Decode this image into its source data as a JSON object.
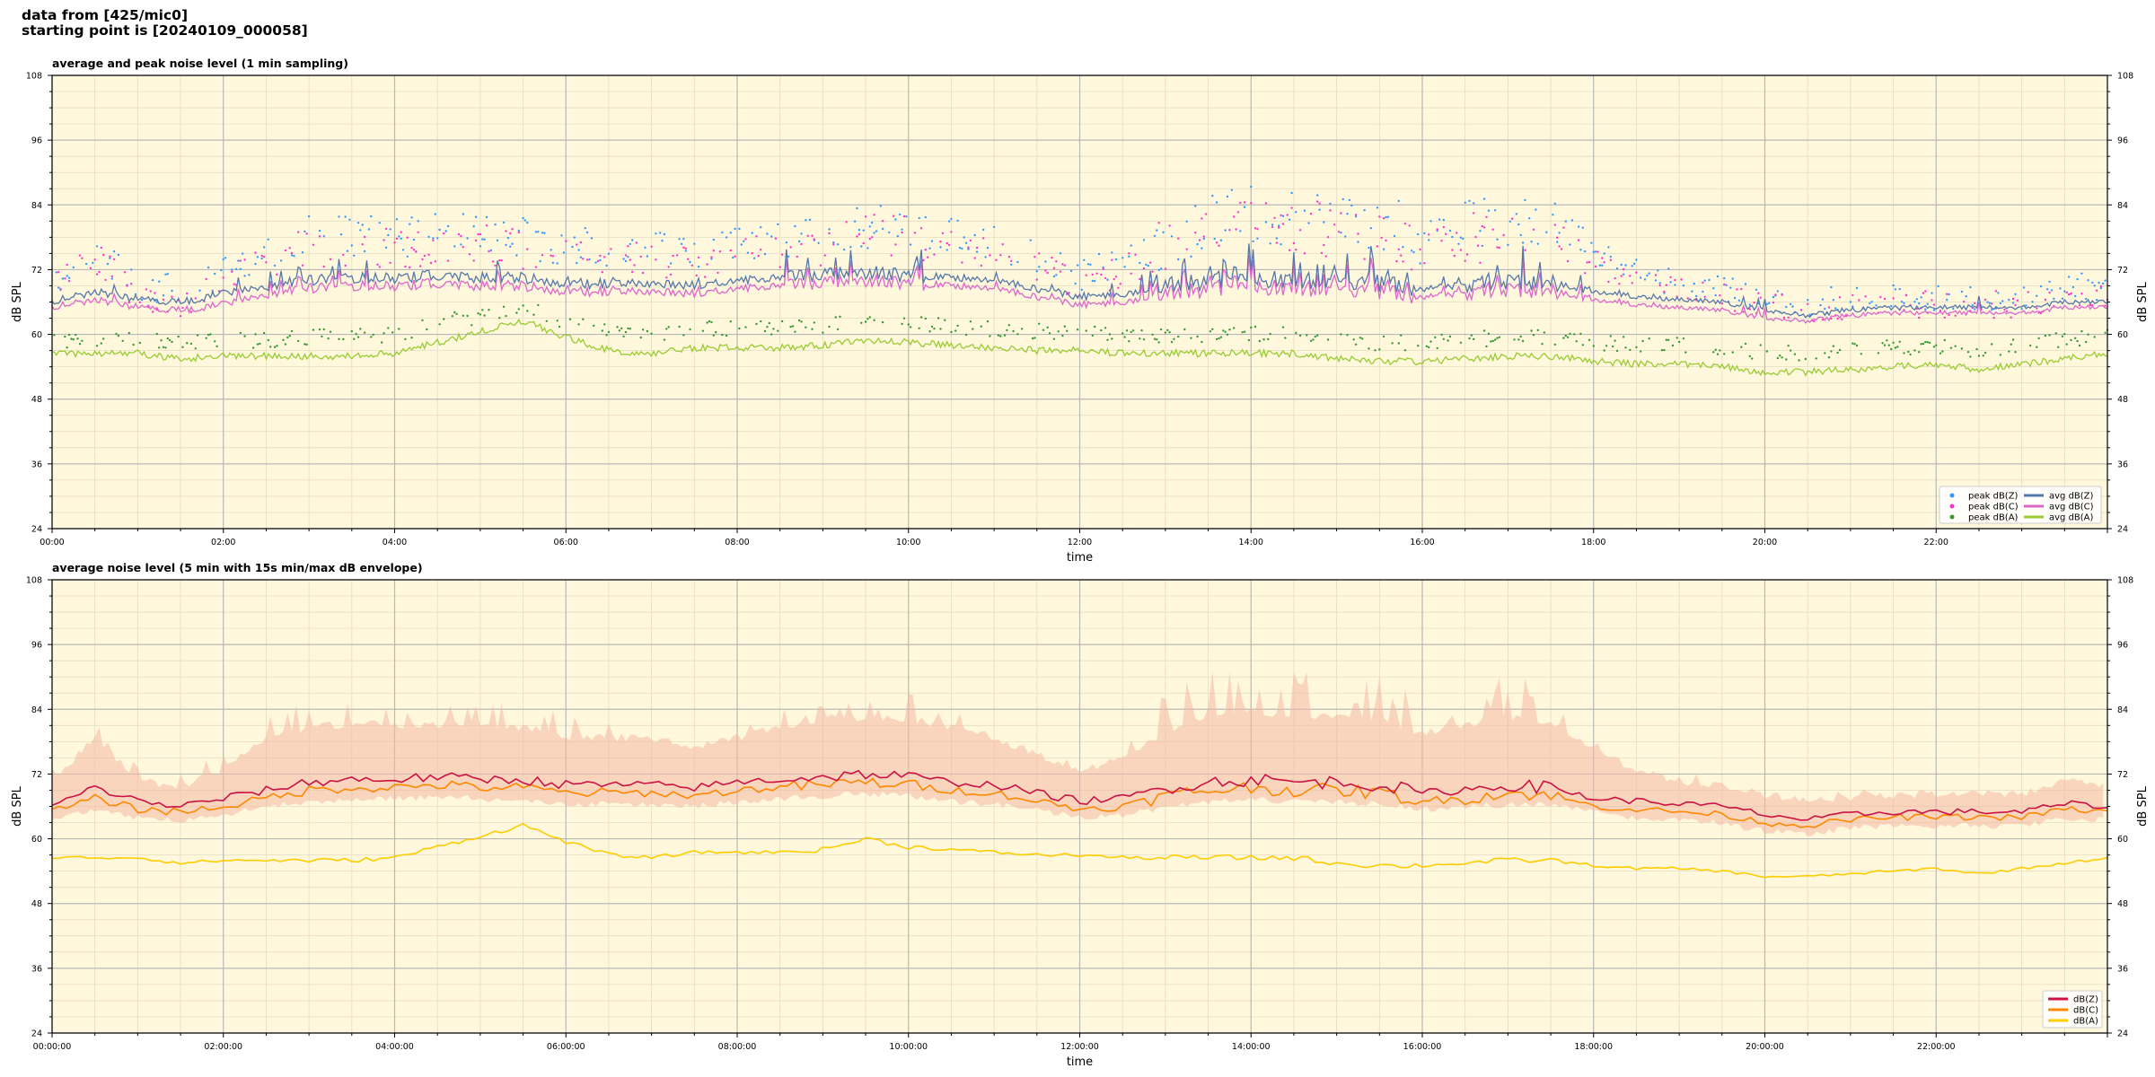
{
  "figure": {
    "title_line1": "data from [425/mic0]",
    "title_line2": "starting point is [20240109_000058]"
  },
  "colors": {
    "plot_background": "#fff8dc",
    "peak_z": "#3399ff",
    "peak_c": "#ff33cc",
    "peak_a": "#339933",
    "avg_z": "#5577aa",
    "avg_c": "#dd66cc",
    "avg_a": "#99cc33",
    "env_fill": "#f4b8a4",
    "db_z": "#cc1144",
    "db_c": "#ff8800",
    "db_a": "#ffcc00"
  },
  "chart_data": [
    {
      "type": "scatter",
      "title": "average and peak noise level (1 min sampling)",
      "xlabel": "time",
      "ylabel": "dB SPL",
      "ylabel_right": "dB SPL",
      "xlim_hours": [
        0,
        24
      ],
      "ylim": [
        24,
        108
      ],
      "xticks": [
        "00:00",
        "02:00",
        "04:00",
        "06:00",
        "08:00",
        "10:00",
        "12:00",
        "14:00",
        "16:00",
        "18:00",
        "20:00",
        "22:00"
      ],
      "yticks": [
        24,
        36,
        48,
        60,
        72,
        84,
        96,
        108
      ],
      "grid": true,
      "legend_position": "lower-right",
      "legend": [
        {
          "label": "peak dB(Z)",
          "kind": "dot",
          "color": "#3399ff"
        },
        {
          "label": "peak dB(C)",
          "kind": "dot",
          "color": "#ff33cc"
        },
        {
          "label": "peak dB(A)",
          "kind": "dot",
          "color": "#339933"
        },
        {
          "label": "avg dB(Z)",
          "kind": "line",
          "color": "#5577aa"
        },
        {
          "label": "avg dB(C)",
          "kind": "line",
          "color": "#dd66cc"
        },
        {
          "label": "avg dB(A)",
          "kind": "line",
          "color": "#99cc33"
        }
      ],
      "baselines_hours": [
        0,
        0.5,
        1,
        1.5,
        2,
        2.5,
        3,
        3.5,
        4,
        4.5,
        5,
        5.5,
        6,
        6.5,
        7,
        7.5,
        8,
        8.5,
        9,
        9.5,
        10,
        10.5,
        11,
        11.5,
        12,
        12.5,
        13,
        13.5,
        14,
        14.5,
        15,
        15.5,
        16,
        16.5,
        17,
        17.5,
        18,
        18.5,
        19,
        19.5,
        20,
        20.5,
        21,
        21.5,
        22,
        22.5,
        23,
        23.5,
        24
      ],
      "series": [
        {
          "name": "avg dB(Z)",
          "values": [
            66,
            68,
            66.5,
            66,
            67.5,
            69,
            70,
            70.5,
            70.5,
            71,
            70.5,
            70.5,
            69.5,
            69.5,
            69.5,
            69,
            70,
            70.5,
            71,
            71.5,
            71,
            70.5,
            70,
            68.5,
            67,
            67.5,
            69,
            70,
            70.5,
            70,
            70,
            69.5,
            68.5,
            69,
            69.5,
            69.5,
            68,
            67,
            66.5,
            66,
            64.5,
            63.5,
            64.5,
            65,
            65,
            65,
            65,
            66,
            66
          ]
        },
        {
          "name": "avg dB(C)",
          "values": [
            65,
            66.5,
            65,
            64.5,
            65.5,
            67.5,
            68.5,
            69,
            69,
            69.5,
            69,
            69,
            68,
            68,
            68,
            67.5,
            68.5,
            69,
            69.5,
            70,
            69.5,
            69,
            68.5,
            67,
            65.5,
            66,
            67.5,
            68.5,
            69,
            68.5,
            68.5,
            68,
            67,
            67.5,
            68,
            68,
            66.5,
            65.5,
            65,
            64.5,
            63,
            62.5,
            63.5,
            64,
            64,
            64,
            64,
            65,
            65
          ]
        },
        {
          "name": "avg dB(A)",
          "values": [
            56.5,
            56.5,
            56.5,
            55.5,
            56,
            56,
            56,
            56,
            56.5,
            58.5,
            60.5,
            62.5,
            59.5,
            57,
            56.5,
            57.5,
            57.5,
            57.5,
            58,
            59,
            58.5,
            58,
            57.5,
            57,
            57,
            56.5,
            56.5,
            56.5,
            56.5,
            56.5,
            55.5,
            55,
            55,
            55.5,
            56,
            56,
            55,
            54.5,
            54.5,
            54,
            53,
            53,
            53.5,
            54,
            54.5,
            53.5,
            54.5,
            55.5,
            56.5
          ]
        },
        {
          "name": "peak dB(Z)",
          "values": [
            69,
            76,
            69,
            68,
            71,
            76,
            78,
            78.5,
            78,
            78.5,
            78.5,
            78,
            76,
            76,
            76,
            75,
            76.5,
            78,
            79,
            80,
            79.5,
            78.5,
            77,
            74,
            71,
            73,
            78,
            81,
            82.5,
            81.5,
            81.5,
            80.5,
            78,
            79.5,
            81,
            80.5,
            75.5,
            71.5,
            69.5,
            68.5,
            67,
            66,
            66.5,
            67,
            67,
            67,
            67,
            69,
            68.5
          ]
        },
        {
          "name": "peak dB(C)",
          "values": [
            68,
            74,
            67.5,
            66.5,
            69.5,
            74.5,
            76,
            76.5,
            76,
            76.5,
            76.5,
            76,
            74,
            74,
            74,
            73,
            74.5,
            76,
            77,
            78,
            77.5,
            76.5,
            75,
            72,
            69.5,
            71.5,
            76,
            79,
            80.5,
            79.5,
            79.5,
            78.5,
            76,
            77.5,
            79,
            78.5,
            73.5,
            70,
            68,
            67,
            65.5,
            64.5,
            65,
            65.5,
            65.5,
            65.5,
            65.5,
            67.5,
            67
          ]
        },
        {
          "name": "peak dB(A)",
          "values": [
            59,
            59,
            59.5,
            58.5,
            59,
            59,
            59.5,
            59.5,
            60,
            62,
            63.5,
            65,
            62.5,
            60.5,
            60,
            61,
            61,
            61,
            61.5,
            62.5,
            62,
            61.5,
            61,
            60.5,
            60.5,
            60,
            60,
            60,
            60,
            60,
            59,
            58.5,
            58.5,
            59,
            59.5,
            59.5,
            58.5,
            58,
            58,
            57.5,
            56.5,
            56.5,
            57,
            57.5,
            58,
            57,
            58,
            59,
            60
          ]
        }
      ]
    },
    {
      "type": "line",
      "title": "average noise level (5 min with 15s min/max dB envelope)",
      "xlabel": "time",
      "ylabel": "dB SPL",
      "ylabel_right": "dB SPL",
      "xlim_hours": [
        0,
        24
      ],
      "ylim": [
        24,
        108
      ],
      "xticks": [
        "00:00:00",
        "02:00:00",
        "04:00:00",
        "06:00:00",
        "08:00:00",
        "10:00:00",
        "12:00:00",
        "14:00:00",
        "16:00:00",
        "18:00:00",
        "20:00:00",
        "22:00:00"
      ],
      "yticks": [
        24,
        36,
        48,
        60,
        72,
        84,
        96,
        108
      ],
      "grid": true,
      "legend_position": "lower-right",
      "legend": [
        {
          "label": "dB(Z)",
          "kind": "line",
          "color": "#cc1144"
        },
        {
          "label": "dB(C)",
          "kind": "line",
          "color": "#ff8800"
        },
        {
          "label": "dB(A)",
          "kind": "line",
          "color": "#ffcc00"
        }
      ],
      "x_hours": [
        0,
        0.5,
        1,
        1.5,
        2,
        2.5,
        3,
        3.5,
        4,
        4.5,
        5,
        5.5,
        6,
        6.5,
        7,
        7.5,
        8,
        8.5,
        9,
        9.5,
        10,
        10.5,
        11,
        11.5,
        12,
        12.5,
        13,
        13.5,
        14,
        14.5,
        15,
        15.5,
        16,
        16.5,
        17,
        17.5,
        18,
        18.5,
        19,
        19.5,
        20,
        20.5,
        21,
        21.5,
        22,
        22.5,
        23,
        23.5,
        24
      ],
      "series": [
        {
          "name": "dB(Z)",
          "values": [
            66,
            69.5,
            67,
            66,
            67.5,
            69,
            70.5,
            71,
            71,
            71.5,
            71,
            71,
            70,
            70,
            70,
            69.5,
            70.5,
            71,
            71.5,
            72,
            71.5,
            70.5,
            70,
            68.5,
            67,
            67.5,
            69.5,
            70.5,
            71,
            70.5,
            70.5,
            70,
            68.5,
            69,
            70,
            69.5,
            67.5,
            67,
            66.5,
            66,
            64.5,
            63.5,
            64.5,
            65,
            65,
            65,
            65,
            66.5,
            66
          ]
        },
        {
          "name": "dB(C)",
          "values": [
            65,
            67.5,
            65.5,
            65,
            66,
            67.5,
            69,
            69.5,
            69.5,
            70,
            69.5,
            69.5,
            68.5,
            68.5,
            68.5,
            68,
            69,
            69.5,
            70,
            70.5,
            70,
            69,
            68.5,
            67,
            65.5,
            66,
            68,
            69,
            69.5,
            69,
            69,
            68.5,
            67,
            67.5,
            68.5,
            68,
            66,
            65.5,
            65,
            64.5,
            63,
            62.5,
            63.5,
            64,
            64,
            64,
            64,
            65.5,
            65
          ]
        },
        {
          "name": "dB(A)",
          "values": [
            56.5,
            56.5,
            56.5,
            55.5,
            56,
            56,
            56,
            56,
            56.5,
            58.5,
            60.5,
            62.5,
            59.5,
            57,
            56.5,
            57.5,
            57.5,
            57.5,
            58,
            60,
            58.5,
            58,
            57.5,
            57,
            57,
            56.5,
            56.5,
            56.5,
            56.5,
            56.5,
            55.5,
            55,
            55,
            55.5,
            56,
            56,
            55,
            54.5,
            54.5,
            54,
            53,
            53,
            53.5,
            54,
            54.5,
            53.5,
            54.5,
            55.5,
            56.5
          ]
        },
        {
          "name": "max",
          "values": [
            70,
            78,
            70,
            69,
            72,
            78,
            80,
            80.5,
            80,
            80.5,
            80.5,
            80,
            78,
            78,
            78,
            76,
            78,
            80,
            81,
            82,
            81.5,
            80,
            78,
            75,
            72,
            74,
            79,
            82,
            83,
            82,
            82,
            81,
            79,
            80,
            82,
            81,
            76,
            72,
            70,
            69,
            67.5,
            66.5,
            67,
            67.5,
            67.5,
            67.5,
            67.5,
            70,
            69
          ]
        },
        {
          "name": "min",
          "values": [
            64.5,
            66,
            64.5,
            64,
            65,
            66.5,
            67.5,
            68,
            68,
            68.5,
            68,
            68,
            67,
            67,
            67,
            66.5,
            67.5,
            68,
            68.5,
            69,
            68.5,
            67.5,
            67,
            66,
            64.5,
            65,
            66.5,
            67.5,
            68,
            67.5,
            67.5,
            67,
            66,
            66.5,
            67,
            67,
            65.5,
            64.5,
            64,
            63.5,
            62,
            61.5,
            62.5,
            63,
            63,
            63,
            63,
            64.5,
            64
          ]
        }
      ]
    }
  ]
}
